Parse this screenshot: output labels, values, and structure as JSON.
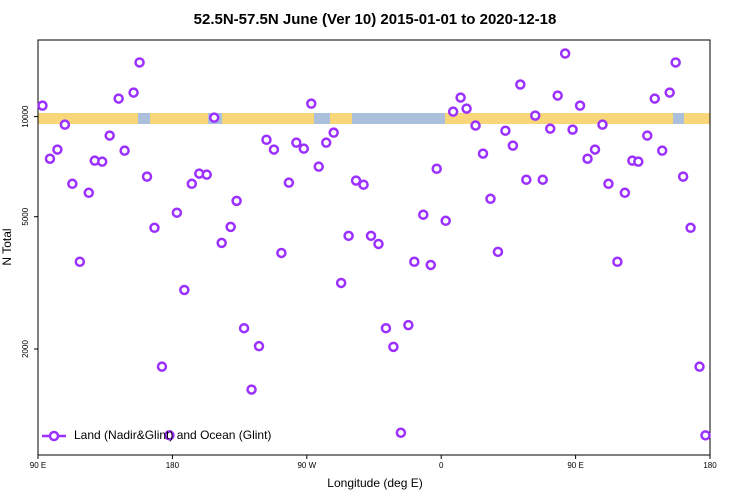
{
  "chart_data": {
    "type": "scatter",
    "title": "52.5N-57.5N June (Ver 10)   2015-01-01 to 2020-12-18",
    "x_label": "Longitude (deg E)",
    "y_label": "N Total",
    "ylog": true,
    "xlim": [
      90,
      540
    ],
    "ylim": [
      960,
      17000
    ],
    "xticks": [
      {
        "value": 90,
        "label": "90 E"
      },
      {
        "value": 180,
        "label": "180"
      },
      {
        "value": 270,
        "label": "90 W"
      },
      {
        "value": 360,
        "label": "0"
      },
      {
        "value": 450,
        "label": "90 E"
      },
      {
        "value": 540,
        "label": "180"
      }
    ],
    "yticks": [
      2000,
      5000,
      10000
    ],
    "legend_position": "lower left",
    "series": [
      {
        "name": "Land (Nadir&Glint) and Ocean (Glint)",
        "color": "#9b30ff",
        "x": [
          93,
          98,
          103,
          108,
          113,
          118,
          124,
          128,
          133,
          138,
          144,
          148,
          154,
          158,
          163,
          168,
          173,
          178,
          183,
          188,
          193,
          198,
          203,
          208,
          213,
          219,
          223,
          228,
          233,
          238,
          243,
          248,
          253,
          258,
          263,
          268,
          273,
          278,
          283,
          288,
          293,
          298,
          303,
          308,
          313,
          318,
          323,
          328,
          333,
          338,
          342,
          348,
          353,
          357,
          363,
          368,
          373,
          377,
          383,
          388,
          393,
          398,
          403,
          408,
          413,
          417,
          423,
          428,
          433,
          438,
          443,
          448,
          453,
          458,
          463,
          468,
          472,
          478,
          483,
          488,
          492,
          498,
          503,
          508,
          513,
          517,
          522,
          527,
          533,
          537
        ],
        "values": [
          10790,
          7470,
          7960,
          9460,
          6280,
          3660,
          5900,
          7370,
          7320,
          8770,
          11330,
          7900,
          11810,
          14550,
          6600,
          4630,
          1770,
          1100,
          5140,
          3010,
          6280,
          6740,
          6690,
          9930,
          4170,
          4660,
          5580,
          2310,
          1510,
          2040,
          8520,
          7960,
          3890,
          6330,
          8350,
          8010,
          10940,
          7070,
          8350,
          8950,
          3160,
          4380,
          6420,
          6240,
          4380,
          4140,
          2310,
          2030,
          1120,
          2360,
          3660,
          5070,
          3580,
          6970,
          4860,
          10350,
          11410,
          10570,
          9400,
          7740,
          5660,
          3920,
          9070,
          8180,
          12490,
          6460,
          10070,
          6460,
          9200,
          11570,
          15480,
          9140,
          10790,
          7470,
          7960,
          9460,
          6280,
          3660,
          5900,
          7370,
          7320,
          8770,
          11330,
          7900,
          11810,
          14550,
          6600,
          4630,
          1770,
          1100
        ]
      }
    ]
  }
}
